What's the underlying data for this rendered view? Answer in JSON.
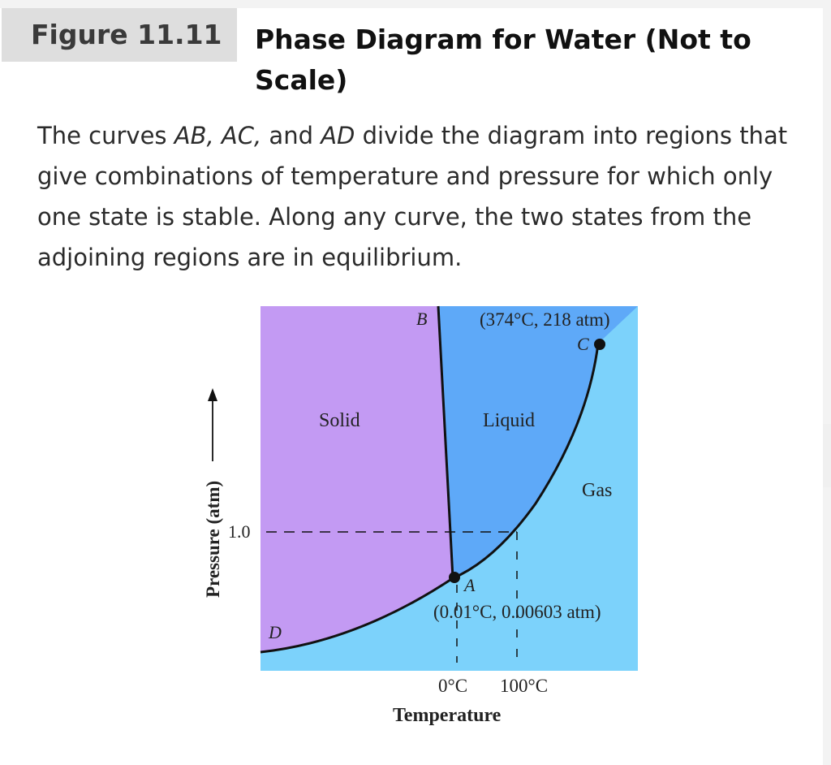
{
  "figure": {
    "label": "Figure 11.11",
    "title": "Phase Diagram for Water (Not to Scale)"
  },
  "caption": {
    "part1": "The curves ",
    "curve_ab": "AB,",
    "part2": " ",
    "curve_ac": "AC,",
    "part3": " and ",
    "curve_ad": "AD",
    "part4": " divide the diagram into regions that give combinations of temperature and pressure for which only one state is stable. Along any curve, the two states from the adjoining regions are in equilibrium."
  },
  "diagram": {
    "regions": {
      "solid": "Solid",
      "liquid": "Liquid",
      "gas": "Gas"
    },
    "points": {
      "a": "A",
      "b": "B",
      "c": "C",
      "d": "D"
    },
    "annotations": {
      "critical_point": "(374°C, 218 atm)",
      "triple_point": "(0.01°C, 0.00603 atm)"
    },
    "y_axis": {
      "label": "Pressure (atm)",
      "tick": "1.0"
    },
    "x_axis": {
      "label": "Temperature",
      "tick_0": "0°C",
      "tick_100": "100°C"
    },
    "colors": {
      "solid": "#c39af3",
      "liquid": "#5ea9f8",
      "gas": "#7cd2fb"
    }
  },
  "nav": {
    "prev_glyph": "‹"
  }
}
